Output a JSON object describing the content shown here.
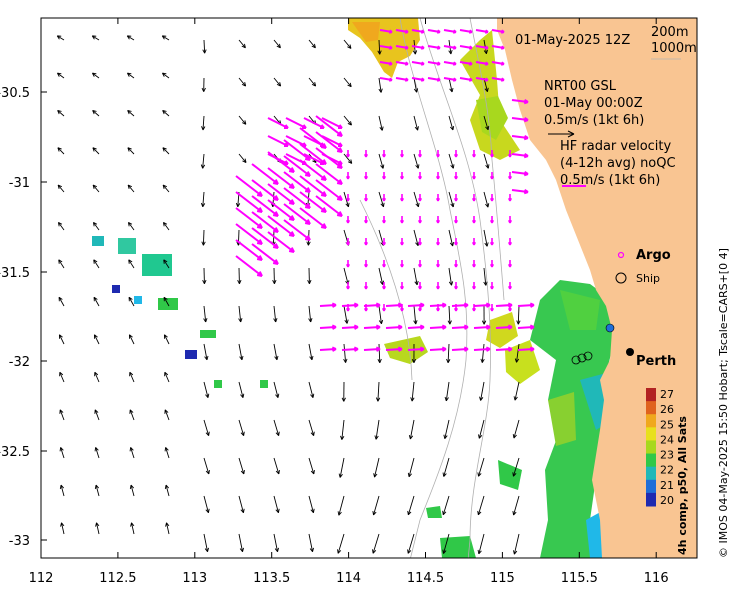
{
  "date_label": "01-May-2025 12Z",
  "isobaths": [
    "200m",
    "1000m"
  ],
  "model_label": [
    "NRT00 GSL",
    "01-May 00:00Z",
    "0.5m/s (1kt 6h)"
  ],
  "radar_label": [
    "HF radar velocity",
    "(4-12h avg) noQC",
    "0.5m/s (1kt 6h)"
  ],
  "legend": {
    "argo": "Argo",
    "ship": "Ship"
  },
  "city": "Perth",
  "colorbar": {
    "title": "4h comp, p50, All Sats",
    "ticks": [
      "27",
      "26",
      "25",
      "24",
      "23",
      "22",
      "21",
      "20"
    ],
    "colors": [
      "#b22222",
      "#e0621e",
      "#f0a81e",
      "#e8e01e",
      "#a8d81e",
      "#30c848",
      "#20b8b8",
      "#1e6ed8",
      "#1e2ab0"
    ]
  },
  "credit": "© IMOS 04-May-2025 15:50 Hobart; Tscale=CARS+[0 4]",
  "axes": {
    "x_ticks": [
      "112",
      "112.5",
      "113",
      "113.5",
      "114",
      "114.5",
      "115",
      "115.5",
      "116"
    ],
    "y_ticks": [
      "-30.5",
      "-31",
      "-31.5",
      "-32",
      "-32.5",
      "-33"
    ]
  },
  "colors": {
    "land": "#f9c592",
    "radar": "#ff00ff",
    "model": "#000000"
  }
}
